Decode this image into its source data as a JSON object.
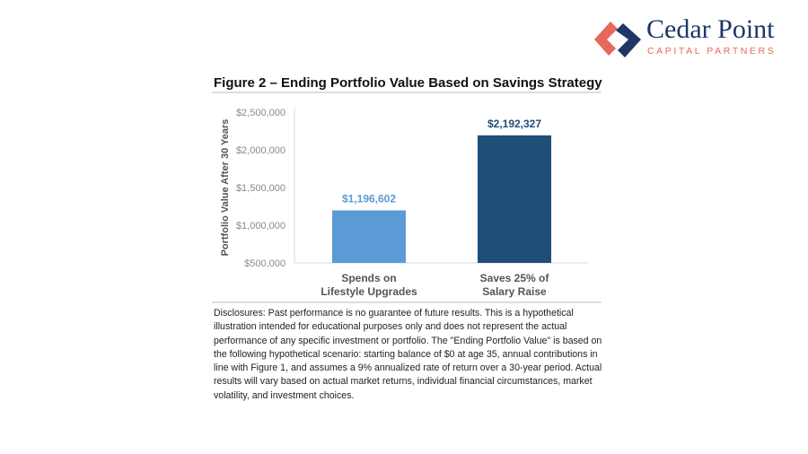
{
  "logo": {
    "name": "Cedar Point",
    "subtitle": "CAPITAL PARTNERS",
    "colors": {
      "navy": "#1f3764",
      "coral": "#e8675d"
    }
  },
  "chart_data": {
    "type": "bar",
    "title": "Figure 2 – Ending Portfolio Value Based on Savings Strategy",
    "ylabel": "Portfolio Value After 30 Years",
    "xlabel": "",
    "categories": [
      [
        "Spends on",
        "Lifestyle Upgrades"
      ],
      [
        "Saves 25% of",
        "Salary Raise"
      ]
    ],
    "values": [
      1196602,
      2192327
    ],
    "data_labels": [
      "$1,196,602",
      "$2,192,327"
    ],
    "colors": [
      "#5b9bd5",
      "#1f4e79"
    ],
    "ylim": [
      500000,
      2500000
    ],
    "yticks": [
      500000,
      1000000,
      1500000,
      2000000,
      2500000
    ],
    "ytick_labels": [
      "$500,000",
      "$1,000,000",
      "$1,500,000",
      "$2,000,000",
      "$2,500,000"
    ],
    "grid": false
  },
  "disclosure": "Disclosures: Past performance is no guarantee of future results. This is a hypothetical illustration intended for educational purposes only and does not represent the actual performance of any specific investment or portfolio. The \"Ending Portfolio Value\" is based on the following hypothetical scenario: starting balance of $0 at age 35, annual contributions in line with Figure 1, and assumes a 9% annualized rate of return over a 30-year period. Actual results will vary based on actual market returns, individual financial circumstances, market volatility, and investment choices."
}
